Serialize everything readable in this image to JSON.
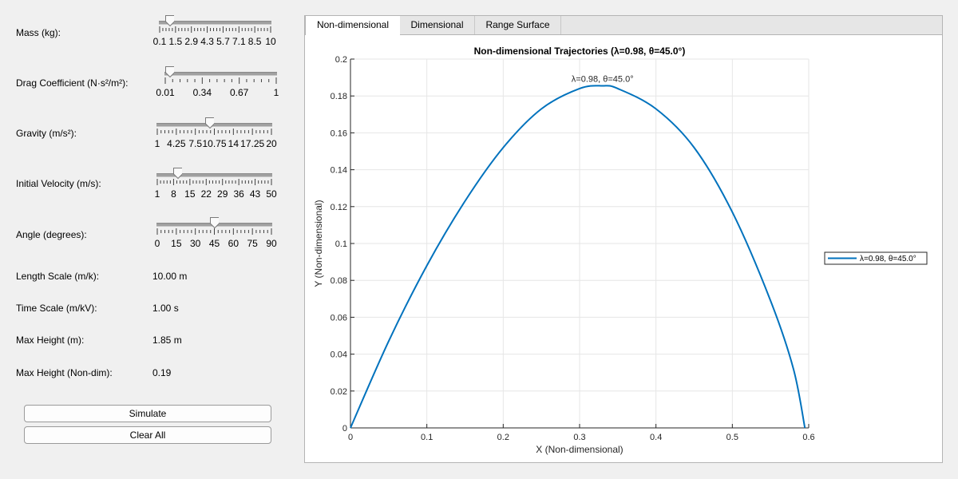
{
  "controls": {
    "mass": {
      "label": "Mass (kg):",
      "value": 1.0,
      "min": 0.1,
      "max": 10,
      "ticks": [
        "0.1",
        "1.5",
        "2.9",
        "4.3",
        "5.7",
        "7.1",
        "8.5",
        "10"
      ]
    },
    "drag": {
      "label": "Drag Coefficient (N·s²/m²):",
      "value": 0.05,
      "min": 0.01,
      "max": 1,
      "ticks": [
        "0.01",
        "0.34",
        "0.67",
        "1"
      ]
    },
    "gravity": {
      "label": "Gravity (m/s²):",
      "value": 9.81,
      "min": 1,
      "max": 20,
      "ticks": [
        "1",
        "4.25",
        "7.5",
        "10.75",
        "14",
        "17.25",
        "20"
      ]
    },
    "velocity": {
      "label": "Initial Velocity (m/s):",
      "value": 10,
      "min": 1,
      "max": 50,
      "ticks": [
        "1",
        "8",
        "15",
        "22",
        "29",
        "36",
        "43",
        "50"
      ]
    },
    "angle": {
      "label": "Angle (degrees):",
      "value": 45,
      "min": 0,
      "max": 90,
      "ticks": [
        "0",
        "15",
        "30",
        "45",
        "60",
        "75",
        "90"
      ]
    }
  },
  "readouts": {
    "length_scale": {
      "label": "Length Scale (m/k):",
      "value": "10.00 m"
    },
    "time_scale": {
      "label": "Time Scale (m/kV):",
      "value": "1.00 s"
    },
    "max_height": {
      "label": "Max Height (m):",
      "value": "1.85 m"
    },
    "max_height_nondim": {
      "label": "Max Height (Non-dim):",
      "value": "0.19"
    }
  },
  "buttons": {
    "simulate": "Simulate",
    "clear_all": "Clear All"
  },
  "tabs": [
    "Non-dimensional",
    "Dimensional",
    "Range Surface"
  ],
  "active_tab": 0,
  "colors": {
    "line": "#0072bd",
    "grid": "#e6e6e6",
    "axis": "#262626"
  },
  "chart_data": {
    "type": "line",
    "title": "Non-dimensional Trajectories (λ=0.98, θ=45.0°)",
    "xlabel": "X (Non-dimensional)",
    "ylabel": "Y (Non-dimensional)",
    "xlim": [
      0,
      0.6
    ],
    "ylim": [
      0,
      0.2
    ],
    "xticks": [
      0,
      0.1,
      0.2,
      0.3,
      0.4,
      0.5,
      0.6
    ],
    "xtick_labels": [
      "0",
      "0.1",
      "0.2",
      "0.3",
      "0.4",
      "0.5",
      "0.6"
    ],
    "yticks": [
      0,
      0.02,
      0.04,
      0.06,
      0.08,
      0.1,
      0.12,
      0.14,
      0.16,
      0.18,
      0.2
    ],
    "ytick_labels": [
      "0",
      "0.02",
      "0.04",
      "0.06",
      "0.08",
      "0.1",
      "0.12",
      "0.14",
      "0.16",
      "0.18",
      "0.2"
    ],
    "grid": true,
    "legend_position": "outside-right",
    "series": [
      {
        "name": "λ=0.98, θ=45.0°",
        "x": [
          0,
          0.05,
          0.1,
          0.15,
          0.2,
          0.25,
          0.3,
          0.33,
          0.35,
          0.4,
          0.45,
          0.5,
          0.55,
          0.58,
          0.595
        ],
        "y": [
          0,
          0.047,
          0.088,
          0.123,
          0.152,
          0.173,
          0.184,
          0.1855,
          0.184,
          0.173,
          0.152,
          0.117,
          0.069,
          0.032,
          0
        ]
      }
    ],
    "annotations": [
      {
        "text": "λ=0.98, θ=45.0°",
        "x": 0.33,
        "y": 0.186
      }
    ]
  }
}
